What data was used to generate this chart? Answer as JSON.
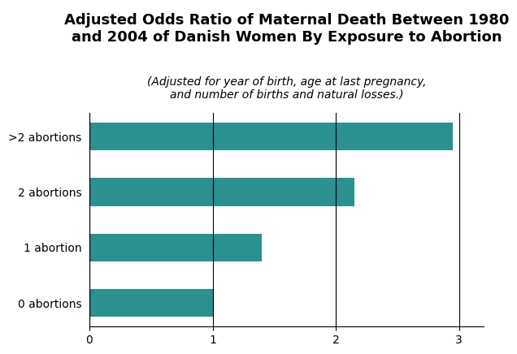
{
  "title_line1": "Adjusted Odds Ratio of Maternal Death Between 1980",
  "title_line2": "and 2004 of Danish Women By Exposure to Abortion",
  "subtitle": "(Adjusted for year of birth, age at last pregnancy,\nand number of births and natural losses.)",
  "categories": [
    "0 abortions",
    "1 abortion",
    "2 abortions",
    ">2 abortions"
  ],
  "values": [
    1.0,
    1.4,
    2.15,
    2.95
  ],
  "bar_color": "#2a9090",
  "xlim": [
    0,
    3.2
  ],
  "xticks": [
    0,
    1,
    2,
    3
  ],
  "background_color": "#ffffff",
  "grid_color": "#000000",
  "title_fontsize": 13,
  "subtitle_fontsize": 10,
  "tick_fontsize": 10,
  "bar_height": 0.5
}
